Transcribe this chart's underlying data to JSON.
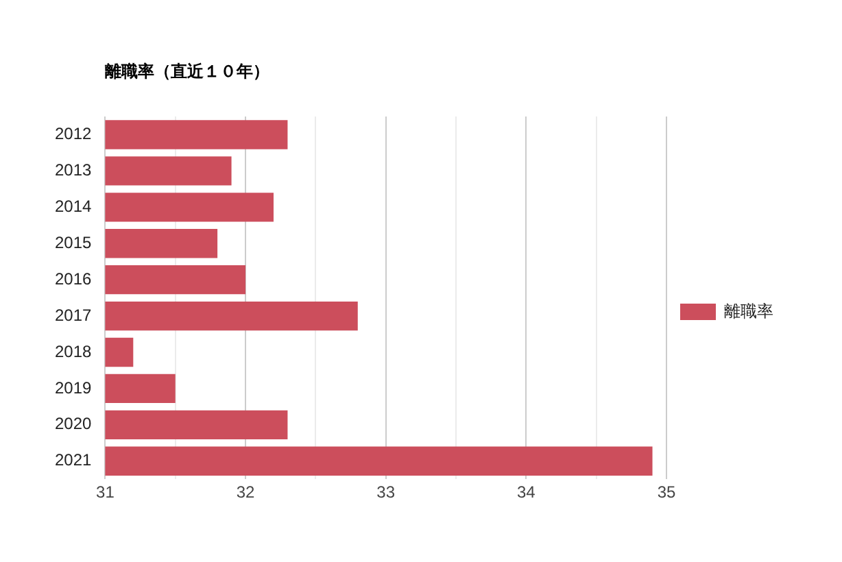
{
  "chart_data": {
    "type": "bar",
    "orientation": "horizontal",
    "title": "離職率（直近１０年）",
    "categories": [
      "2012",
      "2013",
      "2014",
      "2015",
      "2016",
      "2017",
      "2018",
      "2019",
      "2020",
      "2021"
    ],
    "series": [
      {
        "name": "離職率",
        "color": "#cc4e5c",
        "values": [
          32.3,
          31.9,
          32.2,
          31.8,
          32.0,
          32.8,
          31.2,
          31.5,
          32.3,
          34.9
        ]
      }
    ],
    "xlim": [
      31,
      35
    ],
    "xticks": [
      31,
      {
        "value": 31.5,
        "label": null
      },
      32,
      {
        "value": 32.5,
        "label": null
      },
      33,
      {
        "value": 33.5,
        "label": null
      },
      34,
      {
        "value": 34.5,
        "label": null
      },
      35
    ],
    "grid": "x",
    "legend": "right"
  }
}
